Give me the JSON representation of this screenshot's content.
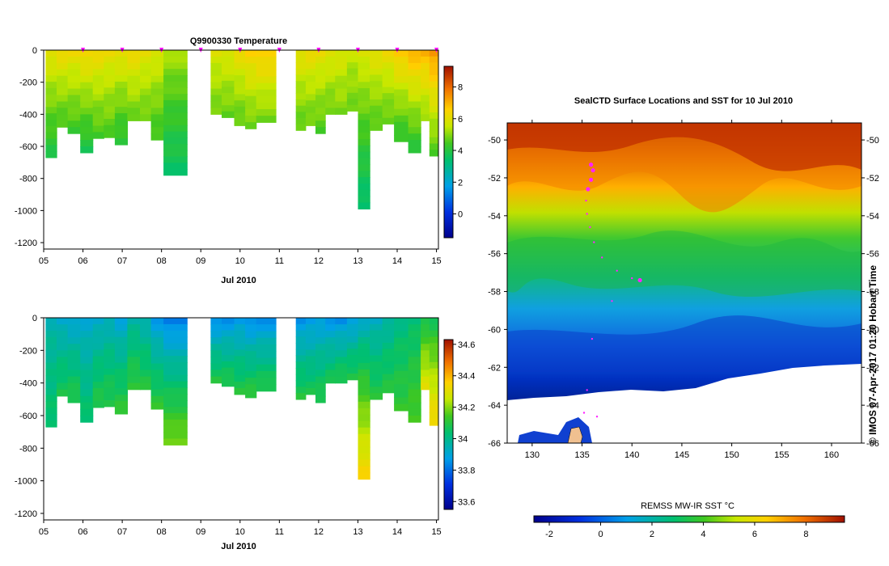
{
  "chart_data": [
    {
      "type": "heatmap",
      "title": "Q9900330  Temperature",
      "xlabel": "Jul 2010",
      "x_ticks": [
        "05",
        "06",
        "07",
        "08",
        "09",
        "10",
        "11",
        "12",
        "13",
        "14",
        "15"
      ],
      "xlim": [
        5,
        15.05
      ],
      "y_ticks": [
        "0",
        "-200",
        "-400",
        "-600",
        "-800",
        "-1000",
        "-1200"
      ],
      "ylim": [
        -1240,
        0
      ],
      "colorbar": {
        "ticks": [
          "0",
          "2",
          "4",
          "6",
          "8"
        ],
        "range": [
          -1.5,
          9.3
        ]
      },
      "profiles": [
        {
          "t": 5.05,
          "w": 0.28,
          "max": 670,
          "surf": 6.2,
          "deep": 3.9
        },
        {
          "t": 5.33,
          "w": 0.28,
          "max": 480,
          "surf": 6.4,
          "deep": 4.4
        },
        {
          "t": 5.61,
          "w": 0.32,
          "max": 520,
          "surf": 6.3,
          "deep": 4.3
        },
        {
          "t": 5.93,
          "w": 0.32,
          "max": 640,
          "surf": 6.6,
          "deep": 3.8
        },
        {
          "t": 6.25,
          "w": 0.28,
          "max": 550,
          "surf": 6.4,
          "deep": 4.4
        },
        {
          "t": 6.53,
          "w": 0.28,
          "max": 545,
          "surf": 6.2,
          "deep": 4.5
        },
        {
          "t": 6.81,
          "w": 0.32,
          "max": 590,
          "surf": 6.3,
          "deep": 4.0
        },
        {
          "t": 7.13,
          "w": 0.32,
          "max": 440,
          "surf": 6.4,
          "deep": 4.7
        },
        {
          "t": 7.45,
          "w": 0.28,
          "max": 440,
          "surf": 6.1,
          "deep": 4.7
        },
        {
          "t": 7.73,
          "w": 0.32,
          "max": 560,
          "surf": 6.0,
          "deep": 4.3
        },
        {
          "t": 8.05,
          "w": 0.6,
          "max": 780,
          "surf": 5.4,
          "deep": 3.5
        },
        {
          "t": 9.25,
          "w": 0.28,
          "max": 400,
          "surf": 5.9,
          "deep": 4.8
        },
        {
          "t": 9.53,
          "w": 0.32,
          "max": 420,
          "surf": 6.0,
          "deep": 4.7
        },
        {
          "t": 9.85,
          "w": 0.28,
          "max": 470,
          "surf": 6.3,
          "deep": 4.6
        },
        {
          "t": 10.13,
          "w": 0.28,
          "max": 490,
          "surf": 6.6,
          "deep": 4.7
        },
        {
          "t": 10.41,
          "w": 0.5,
          "max": 450,
          "surf": 6.8,
          "deep": 4.8
        },
        {
          "t": 11.42,
          "w": 0.25,
          "max": 500,
          "surf": 6.2,
          "deep": 4.6
        },
        {
          "t": 11.67,
          "w": 0.25,
          "max": 470,
          "surf": 6.3,
          "deep": 4.7
        },
        {
          "t": 11.92,
          "w": 0.25,
          "max": 520,
          "surf": 6.2,
          "deep": 4.5
        },
        {
          "t": 12.17,
          "w": 0.25,
          "max": 400,
          "surf": 6.1,
          "deep": 4.7
        },
        {
          "t": 12.42,
          "w": 0.3,
          "max": 400,
          "surf": 5.9,
          "deep": 4.9
        },
        {
          "t": 12.72,
          "w": 0.28,
          "max": 380,
          "surf": 5.6,
          "deep": 4.8
        },
        {
          "t": 13.0,
          "w": 0.3,
          "max": 990,
          "surf": 6.0,
          "deep": 3.3
        },
        {
          "t": 13.3,
          "w": 0.32,
          "max": 500,
          "surf": 6.2,
          "deep": 4.5
        },
        {
          "t": 13.62,
          "w": 0.3,
          "max": 460,
          "surf": 6.3,
          "deep": 4.6
        },
        {
          "t": 13.92,
          "w": 0.36,
          "max": 570,
          "surf": 6.9,
          "deep": 4.1
        },
        {
          "t": 14.28,
          "w": 0.32,
          "max": 640,
          "surf": 7.2,
          "deep": 4.0
        },
        {
          "t": 14.6,
          "w": 0.22,
          "max": 440,
          "surf": 7.1,
          "deep": 5.0
        },
        {
          "t": 14.82,
          "w": 0.22,
          "max": 660,
          "surf": 7.6,
          "deep": 4.5
        }
      ],
      "markers": [
        6,
        7,
        8,
        9,
        10,
        11,
        12,
        13,
        14,
        15
      ]
    },
    {
      "type": "heatmap",
      "title": "",
      "xlabel": "Jul 2010",
      "x_ticks": [
        "05",
        "06",
        "07",
        "08",
        "09",
        "10",
        "11",
        "12",
        "13",
        "14",
        "15"
      ],
      "xlim": [
        5,
        15.05
      ],
      "y_ticks": [
        "0",
        "-200",
        "-400",
        "-600",
        "-800",
        "-1000",
        "-1200"
      ],
      "ylim": [
        -1240,
        0
      ],
      "colorbar": {
        "ticks": [
          "33.6",
          "33.8",
          "34",
          "34.2",
          "34.4",
          "34.6"
        ],
        "range": [
          33.55,
          34.63
        ]
      },
      "profiles": [
        {
          "t": 5.05,
          "w": 0.28,
          "max": 670,
          "surf": 33.95,
          "deep": 34.05
        },
        {
          "t": 5.33,
          "w": 0.28,
          "max": 480,
          "surf": 33.9,
          "deep": 34.08
        },
        {
          "t": 5.61,
          "w": 0.32,
          "max": 520,
          "surf": 33.88,
          "deep": 34.1
        },
        {
          "t": 5.93,
          "w": 0.32,
          "max": 640,
          "surf": 33.9,
          "deep": 34.05
        },
        {
          "t": 6.25,
          "w": 0.28,
          "max": 550,
          "surf": 33.9,
          "deep": 34.1
        },
        {
          "t": 6.53,
          "w": 0.28,
          "max": 545,
          "surf": 33.92,
          "deep": 34.1
        },
        {
          "t": 6.81,
          "w": 0.32,
          "max": 590,
          "surf": 33.88,
          "deep": 34.12
        },
        {
          "t": 7.13,
          "w": 0.32,
          "max": 440,
          "surf": 33.95,
          "deep": 34.12
        },
        {
          "t": 7.45,
          "w": 0.28,
          "max": 440,
          "surf": 33.93,
          "deep": 34.1
        },
        {
          "t": 7.73,
          "w": 0.32,
          "max": 560,
          "surf": 33.85,
          "deep": 34.12
        },
        {
          "t": 8.05,
          "w": 0.6,
          "max": 780,
          "surf": 33.8,
          "deep": 34.2
        },
        {
          "t": 9.25,
          "w": 0.28,
          "max": 400,
          "surf": 33.82,
          "deep": 34.1
        },
        {
          "t": 9.53,
          "w": 0.32,
          "max": 420,
          "surf": 33.83,
          "deep": 34.1
        },
        {
          "t": 9.85,
          "w": 0.28,
          "max": 470,
          "surf": 33.85,
          "deep": 34.1
        },
        {
          "t": 10.13,
          "w": 0.28,
          "max": 490,
          "surf": 33.82,
          "deep": 34.12
        },
        {
          "t": 10.41,
          "w": 0.5,
          "max": 450,
          "surf": 33.83,
          "deep": 34.1
        },
        {
          "t": 11.42,
          "w": 0.25,
          "max": 500,
          "surf": 33.84,
          "deep": 34.1
        },
        {
          "t": 11.67,
          "w": 0.25,
          "max": 470,
          "surf": 33.85,
          "deep": 34.08
        },
        {
          "t": 11.92,
          "w": 0.25,
          "max": 520,
          "surf": 33.86,
          "deep": 34.1
        },
        {
          "t": 12.17,
          "w": 0.25,
          "max": 400,
          "surf": 33.84,
          "deep": 34.08
        },
        {
          "t": 12.42,
          "w": 0.3,
          "max": 400,
          "surf": 33.83,
          "deep": 34.1
        },
        {
          "t": 12.72,
          "w": 0.28,
          "max": 380,
          "surf": 33.85,
          "deep": 34.1
        },
        {
          "t": 13.0,
          "w": 0.3,
          "max": 990,
          "surf": 33.9,
          "deep": 34.35
        },
        {
          "t": 13.3,
          "w": 0.32,
          "max": 500,
          "surf": 33.92,
          "deep": 34.1
        },
        {
          "t": 13.62,
          "w": 0.3,
          "max": 460,
          "surf": 33.95,
          "deep": 34.1
        },
        {
          "t": 13.92,
          "w": 0.36,
          "max": 570,
          "surf": 34.0,
          "deep": 34.12
        },
        {
          "t": 14.28,
          "w": 0.32,
          "max": 640,
          "surf": 34.02,
          "deep": 34.15
        },
        {
          "t": 14.6,
          "w": 0.22,
          "max": 440,
          "surf": 34.05,
          "deep": 34.3
        },
        {
          "t": 14.82,
          "w": 0.22,
          "max": 660,
          "surf": 34.05,
          "deep": 34.35
        }
      ]
    },
    {
      "type": "heatmap",
      "title": "SealCTD Surface Locations and SST for 10 Jul 2010",
      "x_ticks": [
        "130",
        "135",
        "140",
        "145",
        "150",
        "155",
        "160"
      ],
      "xlim": [
        127.5,
        163
      ],
      "y_ticks": [
        "-50",
        "-52",
        "-54",
        "-56",
        "-58",
        "-60",
        "-62",
        "-64",
        "-66"
      ],
      "ylim": [
        -66,
        -49.1
      ],
      "colorbar": {
        "label": "REMSS MW-IR SST °C",
        "ticks": [
          "-2",
          "0",
          "2",
          "4",
          "6",
          "8"
        ],
        "range": [
          -2.6,
          9.5
        ]
      },
      "side_label": "© IMOS 07-Apr-2017 01:20 Hobart Time"
    }
  ]
}
